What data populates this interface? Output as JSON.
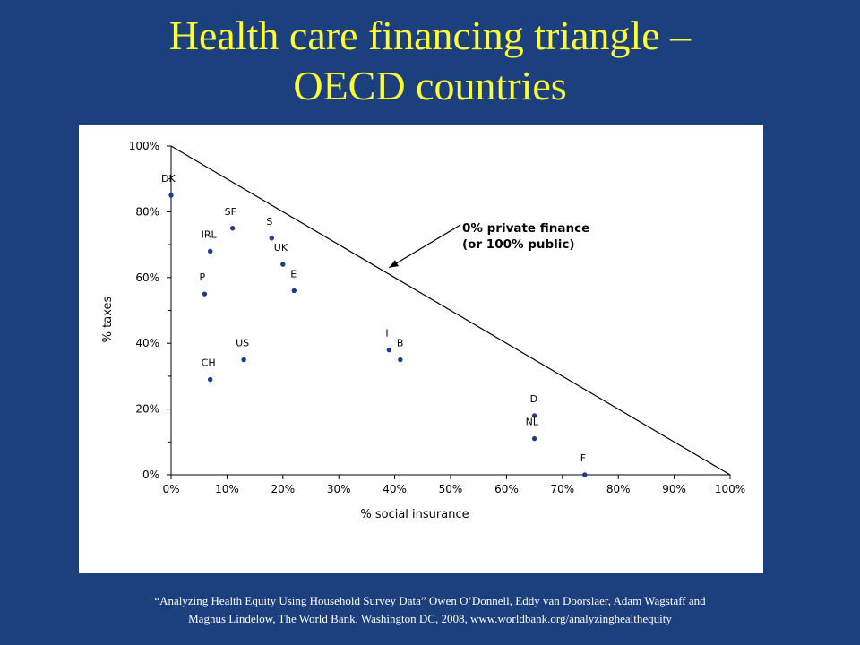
{
  "slide": {
    "title_line1": "Health care financing triangle –",
    "title_line2": "OECD countries",
    "caption_line1": "“Analyzing Health Equity Using Household Survey Data” Owen O’Donnell, Eddy van Doorslaer, Adam Wagstaff and",
    "caption_line2": "Magnus Lindelow, The World Bank, Washington DC, 2008, www.worldbank.org/analyzinghealthequity"
  },
  "colors": {
    "background": "#1c3f7e",
    "title": "#ffff33",
    "point": "#1f3a8a"
  },
  "chart_data": {
    "type": "scatter",
    "xlabel": "% social insurance",
    "ylabel": "% taxes",
    "xlim": [
      0,
      100
    ],
    "ylim": [
      0,
      100
    ],
    "xticks": [
      "0%",
      "10%",
      "20%",
      "30%",
      "40%",
      "50%",
      "60%",
      "70%",
      "80%",
      "90%",
      "100%"
    ],
    "yticks": [
      "0%",
      "20%",
      "40%",
      "60%",
      "80%",
      "100%"
    ],
    "grid": false,
    "points": [
      {
        "label": "DK",
        "x": 0,
        "y": 85
      },
      {
        "label": "SF",
        "x": 11,
        "y": 75
      },
      {
        "label": "IRL",
        "x": 7,
        "y": 68
      },
      {
        "label": "S",
        "x": 18,
        "y": 72
      },
      {
        "label": "UK",
        "x": 20,
        "y": 64
      },
      {
        "label": "E",
        "x": 22,
        "y": 56
      },
      {
        "label": "P",
        "x": 6,
        "y": 55
      },
      {
        "label": "US",
        "x": 13,
        "y": 35
      },
      {
        "label": "CH",
        "x": 7,
        "y": 29
      },
      {
        "label": "I",
        "x": 39,
        "y": 38
      },
      {
        "label": "B",
        "x": 41,
        "y": 35
      },
      {
        "label": "D",
        "x": 65,
        "y": 18
      },
      {
        "label": "NL",
        "x": 65,
        "y": 11
      },
      {
        "label": "F",
        "x": 74,
        "y": 0
      }
    ],
    "boundary_line": {
      "from": [
        0,
        100
      ],
      "to": [
        100,
        0
      ]
    },
    "annotation": {
      "line1": "0% private finance",
      "line2": "(or 100% public)",
      "arrow_target": [
        39,
        63
      ]
    }
  }
}
